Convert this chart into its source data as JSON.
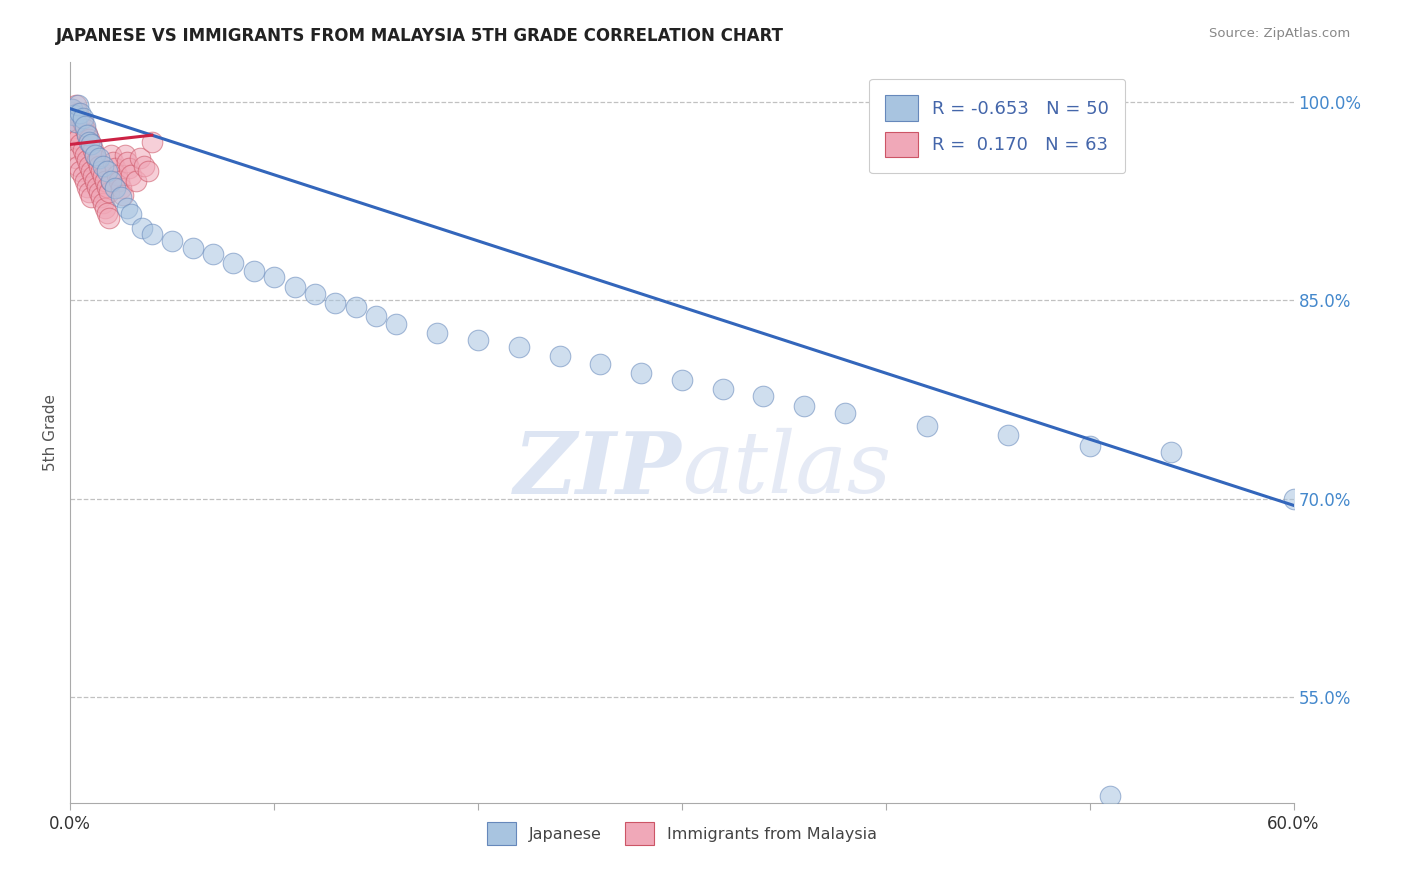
{
  "title": "JAPANESE VS IMMIGRANTS FROM MALAYSIA 5TH GRADE CORRELATION CHART",
  "source": "Source: ZipAtlas.com",
  "ylabel": "5th Grade",
  "xlim": [
    0.0,
    0.6
  ],
  "ylim": [
    0.47,
    1.03
  ],
  "xticks": [
    0.0,
    0.1,
    0.2,
    0.3,
    0.4,
    0.5,
    0.6
  ],
  "xticklabels": [
    "0.0%",
    "",
    "",
    "",
    "",
    "",
    "60.0%"
  ],
  "yticks": [
    0.55,
    0.7,
    0.85,
    1.0
  ],
  "yticklabels": [
    "55.0%",
    "70.0%",
    "85.0%",
    "100.0%"
  ],
  "legend_labels": [
    "Japanese",
    "Immigrants from Malaysia"
  ],
  "legend_R": [
    -0.653,
    0.17
  ],
  "legend_N": [
    50,
    63
  ],
  "blue_color": "#a8c4e0",
  "pink_color": "#f0a8b8",
  "blue_line_color": "#3366bb",
  "pink_line_color": "#cc2244",
  "blue_edge_color": "#6688bb",
  "pink_edge_color": "#cc5566",
  "blue_trend_x": [
    0.0,
    0.6
  ],
  "blue_trend_y": [
    0.995,
    0.695
  ],
  "pink_trend_x": [
    0.0,
    0.04
  ],
  "pink_trend_y": [
    0.968,
    0.975
  ],
  "japanese_x": [
    0.001,
    0.002,
    0.003,
    0.004,
    0.005,
    0.006,
    0.007,
    0.008,
    0.009,
    0.01,
    0.012,
    0.014,
    0.016,
    0.018,
    0.02,
    0.022,
    0.025,
    0.028,
    0.03,
    0.035,
    0.04,
    0.05,
    0.06,
    0.07,
    0.08,
    0.09,
    0.1,
    0.11,
    0.12,
    0.13,
    0.14,
    0.15,
    0.16,
    0.18,
    0.2,
    0.22,
    0.24,
    0.26,
    0.28,
    0.3,
    0.32,
    0.34,
    0.36,
    0.38,
    0.42,
    0.46,
    0.5,
    0.51,
    0.54,
    0.6
  ],
  "japanese_y": [
    0.995,
    0.99,
    0.985,
    0.998,
    0.992,
    0.988,
    0.982,
    0.975,
    0.97,
    0.968,
    0.96,
    0.958,
    0.952,
    0.948,
    0.94,
    0.935,
    0.928,
    0.92,
    0.915,
    0.905,
    0.9,
    0.895,
    0.89,
    0.885,
    0.878,
    0.872,
    0.868,
    0.86,
    0.855,
    0.848,
    0.845,
    0.838,
    0.832,
    0.825,
    0.82,
    0.815,
    0.808,
    0.802,
    0.795,
    0.79,
    0.783,
    0.778,
    0.77,
    0.765,
    0.755,
    0.748,
    0.74,
    0.475,
    0.735,
    0.7
  ],
  "malaysia_x": [
    0.001,
    0.001,
    0.002,
    0.002,
    0.003,
    0.003,
    0.003,
    0.004,
    0.004,
    0.004,
    0.005,
    0.005,
    0.005,
    0.006,
    0.006,
    0.006,
    0.007,
    0.007,
    0.007,
    0.008,
    0.008,
    0.008,
    0.009,
    0.009,
    0.009,
    0.01,
    0.01,
    0.01,
    0.011,
    0.011,
    0.012,
    0.012,
    0.013,
    0.013,
    0.014,
    0.014,
    0.015,
    0.015,
    0.016,
    0.016,
    0.017,
    0.017,
    0.018,
    0.018,
    0.019,
    0.019,
    0.02,
    0.02,
    0.021,
    0.022,
    0.023,
    0.024,
    0.025,
    0.026,
    0.027,
    0.028,
    0.029,
    0.03,
    0.032,
    0.034,
    0.036,
    0.038,
    0.04
  ],
  "malaysia_y": [
    0.995,
    0.975,
    0.985,
    0.965,
    0.998,
    0.978,
    0.958,
    0.992,
    0.972,
    0.952,
    0.988,
    0.968,
    0.948,
    0.984,
    0.964,
    0.944,
    0.98,
    0.96,
    0.94,
    0.976,
    0.956,
    0.936,
    0.972,
    0.952,
    0.932,
    0.968,
    0.948,
    0.928,
    0.964,
    0.944,
    0.96,
    0.94,
    0.956,
    0.936,
    0.952,
    0.932,
    0.948,
    0.928,
    0.944,
    0.924,
    0.94,
    0.92,
    0.936,
    0.916,
    0.932,
    0.912,
    0.96,
    0.94,
    0.955,
    0.95,
    0.945,
    0.94,
    0.935,
    0.93,
    0.96,
    0.955,
    0.95,
    0.945,
    0.94,
    0.958,
    0.952,
    0.948,
    0.97
  ]
}
